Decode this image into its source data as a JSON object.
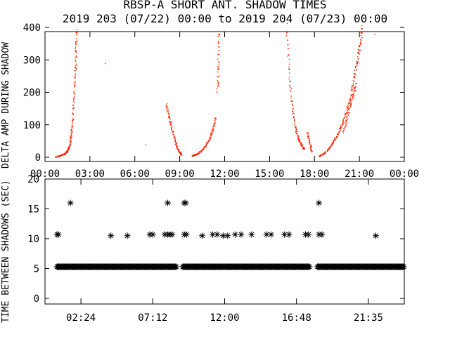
{
  "chart_data": [
    {
      "type": "scatter",
      "title": "RBSP-A SHORT ANT. SHADOW TIMES",
      "subtitle": "2019 203 (07/22) 00:00 to 2019 204 (07/23) 00:00",
      "ylabel": "DELTA AMP DURING SHADOW",
      "xlabel": "",
      "x_tick_labels": [
        "00:00",
        "03:00",
        "06:00",
        "09:00",
        "12:00",
        "15:00",
        "18:00",
        "21:00",
        "00:00"
      ],
      "xlim_hours": [
        0,
        24
      ],
      "ylim": [
        0,
        400
      ],
      "y_ticks": [
        0,
        100,
        200,
        300,
        400
      ],
      "color": "#ff2000",
      "grid": false,
      "segments": [
        {
          "x": [
            0.7,
            1.0,
            1.3,
            1.5,
            1.6,
            1.7,
            1.8,
            1.9,
            2.0,
            2.05,
            2.1
          ],
          "y": [
            2,
            6,
            12,
            20,
            35,
            60,
            100,
            180,
            260,
            330,
            400
          ]
        },
        {
          "x": [
            8.1,
            8.3,
            8.5,
            8.7,
            8.9,
            9.1
          ],
          "y": [
            160,
            120,
            80,
            45,
            22,
            8
          ]
        },
        {
          "x": [
            9.8,
            10.1,
            10.4,
            10.7,
            11.0,
            11.2,
            11.4
          ],
          "y": [
            5,
            10,
            20,
            35,
            60,
            90,
            130
          ]
        },
        {
          "x": [
            11.5,
            11.55,
            11.6
          ],
          "y": [
            200,
            300,
            400
          ]
        },
        {
          "x": [
            16.1,
            16.3,
            16.5,
            16.7,
            16.9,
            17.1,
            17.3
          ],
          "y": [
            400,
            250,
            150,
            90,
            60,
            40,
            25
          ]
        },
        {
          "x": [
            17.5,
            17.7,
            17.8
          ],
          "y": [
            75,
            40,
            15
          ]
        },
        {
          "x": [
            18.3,
            18.6,
            18.9,
            19.2,
            19.5,
            19.8,
            20.1,
            20.4,
            20.6,
            20.8,
            21.0,
            21.2
          ],
          "y": [
            5,
            12,
            25,
            45,
            70,
            100,
            140,
            190,
            240,
            290,
            340,
            400
          ]
        },
        {
          "x": [
            19.9,
            20.2,
            20.5,
            20.8
          ],
          "y": [
            80,
            130,
            180,
            230
          ]
        }
      ],
      "isolated": [
        {
          "x": 4.0,
          "y": 290
        },
        {
          "x": 6.7,
          "y": 40
        },
        {
          "x": 22.0,
          "y": 380
        }
      ]
    },
    {
      "type": "scatter",
      "title": "",
      "ylabel": "TIME BETWEEN SHADOWS (SEC)",
      "xlabel": "",
      "x_tick_labels": [
        "02:24",
        "07:12",
        "12:00",
        "16:48",
        "21:35"
      ],
      "xlim_hours": [
        0,
        24
      ],
      "ylim": [
        0,
        20
      ],
      "y_ticks": [
        0,
        5,
        10,
        15,
        20
      ],
      "marker": "asterisk",
      "color": "#000000",
      "grid": false,
      "baseline": {
        "y": 5.3,
        "ranges": [
          [
            0.8,
            8.8
          ],
          [
            9.2,
            17.7
          ],
          [
            18.2,
            24.0
          ]
        ]
      },
      "points": [
        {
          "x": 0.8,
          "y": 10.7
        },
        {
          "x": 0.9,
          "y": 10.7
        },
        {
          "x": 1.7,
          "y": 16.0
        },
        {
          "x": 4.4,
          "y": 10.5
        },
        {
          "x": 5.5,
          "y": 10.5
        },
        {
          "x": 7.0,
          "y": 10.7
        },
        {
          "x": 7.2,
          "y": 10.7
        },
        {
          "x": 8.0,
          "y": 10.7
        },
        {
          "x": 8.2,
          "y": 10.7
        },
        {
          "x": 8.35,
          "y": 10.7
        },
        {
          "x": 8.5,
          "y": 10.7
        },
        {
          "x": 8.2,
          "y": 16.0
        },
        {
          "x": 9.3,
          "y": 16.0
        },
        {
          "x": 9.4,
          "y": 16.0
        },
        {
          "x": 9.3,
          "y": 10.7
        },
        {
          "x": 9.45,
          "y": 10.7
        },
        {
          "x": 10.5,
          "y": 10.5
        },
        {
          "x": 11.2,
          "y": 10.7
        },
        {
          "x": 11.5,
          "y": 10.7
        },
        {
          "x": 11.9,
          "y": 10.5
        },
        {
          "x": 12.2,
          "y": 10.5
        },
        {
          "x": 12.7,
          "y": 10.7
        },
        {
          "x": 13.1,
          "y": 10.7
        },
        {
          "x": 13.8,
          "y": 10.7
        },
        {
          "x": 14.8,
          "y": 10.7
        },
        {
          "x": 15.1,
          "y": 10.7
        },
        {
          "x": 16.0,
          "y": 10.7
        },
        {
          "x": 16.3,
          "y": 10.7
        },
        {
          "x": 17.4,
          "y": 10.7
        },
        {
          "x": 17.6,
          "y": 10.7
        },
        {
          "x": 18.3,
          "y": 16.0
        },
        {
          "x": 18.3,
          "y": 10.7
        },
        {
          "x": 18.5,
          "y": 10.7
        },
        {
          "x": 22.1,
          "y": 10.5
        }
      ]
    }
  ]
}
